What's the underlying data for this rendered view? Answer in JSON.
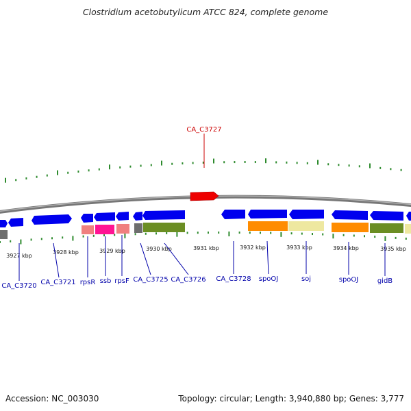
{
  "title": "Clostridium acetobutylicum ATCC 824, complete genome",
  "accession_label": "Accession: NC_003030",
  "summary_label": "Topology: circular; Length: 3,940,880 bp; Genes: 3,777",
  "colors": {
    "backbone": "#808080",
    "tick_green": "#2e8b2e",
    "gene_forward": "#0000ee",
    "gene_highlight": "#ee0000",
    "label_blue": "#0000aa",
    "label_red": "#cc0000",
    "orange": "#ff8c00",
    "khaki": "#eee8a0",
    "olive": "#6b8e23",
    "pink": "#f08080",
    "magenta": "#ff1493",
    "gray": "#6e6e6e"
  },
  "scale_labels": [
    "3927 kbp",
    "3928 kbp",
    "3929 kbp",
    "3930 kbp",
    "3931 kbp",
    "3932 kbp",
    "3933 kbp",
    "3934 kbp",
    "3935 kbp"
  ],
  "highlighted_gene": "CA_C3727",
  "gene_labels": [
    "CA_C3720",
    "CA_C3721",
    "rpsR",
    "ssb",
    "rpsF",
    "CA_C3725",
    "CA_C3726",
    "CA_C3728",
    "spoOJ",
    "soj",
    "spoOJ",
    "gidB"
  ],
  "chart_data": {
    "type": "genome-map",
    "title": "Clostridium acetobutylicum ATCC 824, complete genome",
    "accession": "NC_003030",
    "topology": "circular",
    "length_bp": 3940880,
    "genes_total": 3777,
    "visible_range_kbp": [
      3926.5,
      3935.5
    ],
    "highlighted": "CA_C3727"
  }
}
